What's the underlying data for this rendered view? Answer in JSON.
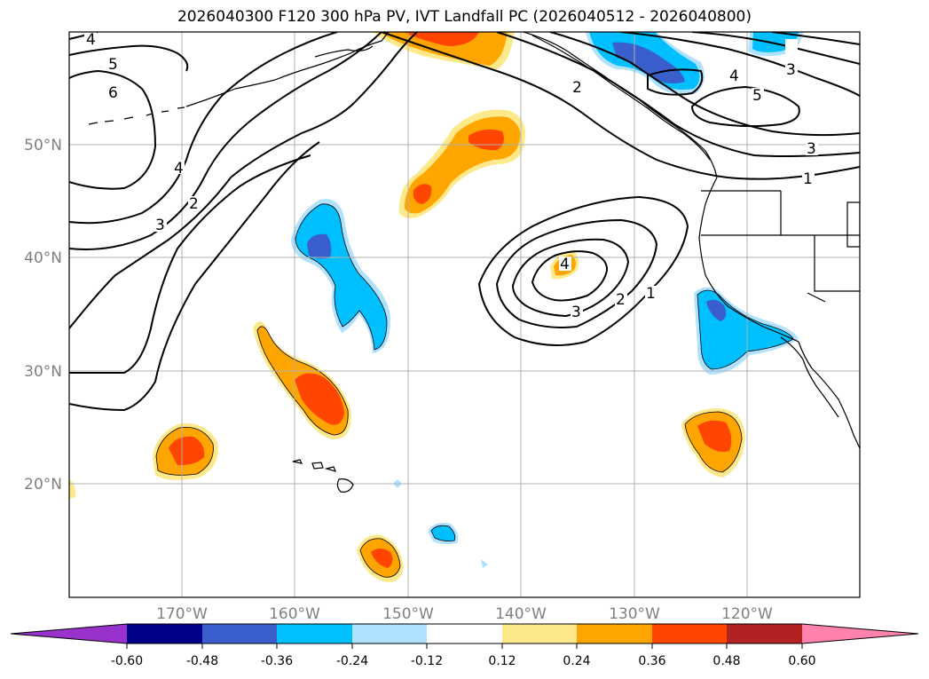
{
  "title": "2026040300 F120 300 hPa PV, IVT Landfall PC (2026040512 - 2026040800)",
  "map": {
    "lon_range": [
      -180,
      -110
    ],
    "lat_range": [
      10,
      60
    ],
    "lat_labels": [
      "20°N",
      "30°N",
      "40°N",
      "50°N"
    ],
    "lon_labels": [
      "170°W",
      "160°W",
      "150°W",
      "140°W",
      "130°W",
      "120°W"
    ],
    "pv_contour_labels": [
      "4",
      "5",
      "6",
      "4",
      "3",
      "2",
      "2",
      "4",
      "3",
      "5",
      "3",
      "1",
      "4",
      "3",
      "2",
      "1"
    ]
  },
  "colorbar": {
    "ticks": [
      "-0.60",
      "-0.48",
      "-0.36",
      "-0.24",
      "-0.12",
      "0.12",
      "0.24",
      "0.36",
      "0.48",
      "0.60"
    ],
    "colors": [
      "#9932cc",
      "#00008b",
      "#3a5fcd",
      "#00bfff",
      "#b0e2ff",
      "#ffffff",
      "#fee98a",
      "#ffa500",
      "#ff4500",
      "#b22222",
      "#ff82ab"
    ]
  }
}
